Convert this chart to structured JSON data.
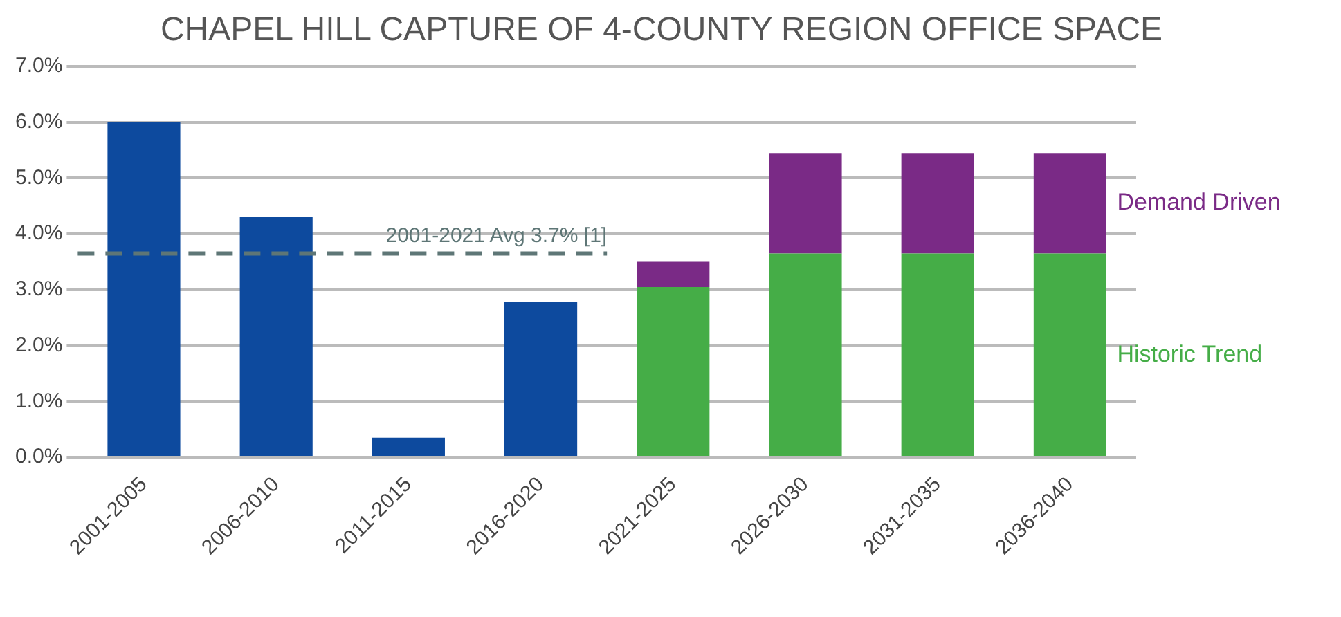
{
  "chart_data": {
    "type": "bar",
    "title": "CHAPEL HILL CAPTURE OF 4-COUNTY REGION OFFICE SPACE",
    "stacked": true,
    "categories": [
      "2001-2005",
      "2006-2010",
      "2011-2015",
      "2016-2020",
      "2021-2025",
      "2026-2030",
      "2031-2035",
      "2036-2040"
    ],
    "series": [
      {
        "color": "#0d4a9e",
        "values": [
          6.0,
          4.3,
          0.35,
          2.78,
          null,
          null,
          null,
          null
        ]
      },
      {
        "name": "Historic Trend",
        "color": "#45ad47",
        "values": [
          null,
          null,
          null,
          null,
          3.05,
          3.65,
          3.65,
          3.65
        ]
      },
      {
        "name": "Demand Driven",
        "color": "#7a2a86",
        "values": [
          null,
          null,
          null,
          null,
          0.45,
          1.8,
          1.8,
          1.8
        ]
      }
    ],
    "ylim": [
      0,
      7
    ],
    "yticks": [
      {
        "value": 0,
        "label": "0.0%"
      },
      {
        "value": 1,
        "label": "1.0%"
      },
      {
        "value": 2,
        "label": "2.0%"
      },
      {
        "value": 3,
        "label": "3.0%"
      },
      {
        "value": 4,
        "label": "4.0%"
      },
      {
        "value": 5,
        "label": "5.0%"
      },
      {
        "value": 6,
        "label": "6.0%"
      },
      {
        "value": 7,
        "label": "7.0%"
      }
    ],
    "grid": "y",
    "ref_lines": [
      {
        "axis": "y",
        "value": 3.65,
        "label": "2001-2021 Avg 3.7% [1]",
        "color": "#5e7676",
        "line_style": "dashed"
      }
    ]
  }
}
